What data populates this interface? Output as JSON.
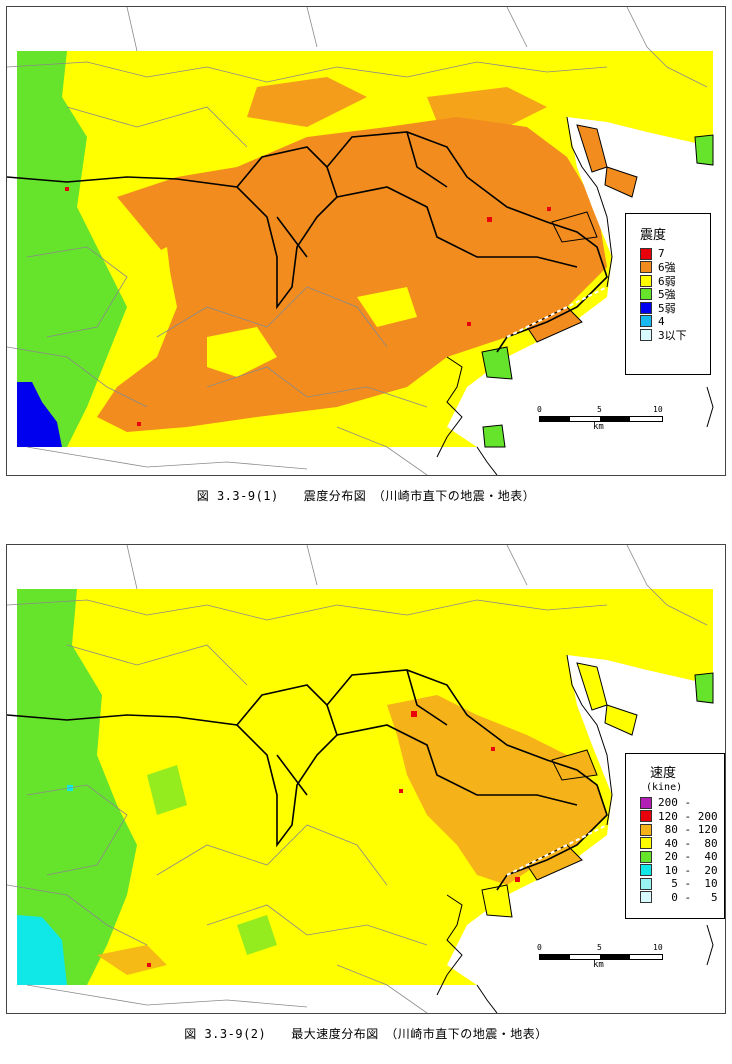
{
  "map1": {
    "caption": "図 3.3-9(1)　　震度分布図　（川崎市直下の地震・地表）",
    "legend": {
      "title": "震度",
      "items": [
        {
          "label": "7",
          "color": "#e8000b"
        },
        {
          "label": "6強",
          "color": "#f28c1e"
        },
        {
          "label": "6弱",
          "color": "#ffff00"
        },
        {
          "label": "5強",
          "color": "#66e32b"
        },
        {
          "label": "5弱",
          "color": "#0000ee"
        },
        {
          "label": "4",
          "color": "#19b8ef"
        },
        {
          "label": "3以下",
          "color": "#d8fbff"
        }
      ]
    },
    "scale": {
      "ticks": [
        "0",
        "5",
        "10"
      ],
      "unit": "km"
    }
  },
  "map2": {
    "caption": "図 3.3-9(2)　　最大速度分布図　（川崎市直下の地震・地表）",
    "legend": {
      "title": "速度",
      "subtitle": "(kine)",
      "items": [
        {
          "label": "200 -",
          "color": "#b21fb5"
        },
        {
          "label": "120 - 200",
          "color": "#e8000b"
        },
        {
          "label": " 80 - 120",
          "color": "#f5b319"
        },
        {
          "label": " 40 -  80",
          "color": "#ffff00"
        },
        {
          "label": " 20 -  40",
          "color": "#66e32b"
        },
        {
          "label": " 10 -  20",
          "color": "#10e8e8"
        },
        {
          "label": "  5 -  10",
          "color": "#9af3f3"
        },
        {
          "label": "  0 -   5",
          "color": "#d8fbff"
        }
      ]
    },
    "scale": {
      "ticks": [
        "0",
        "5",
        "10"
      ],
      "unit": "km"
    }
  }
}
